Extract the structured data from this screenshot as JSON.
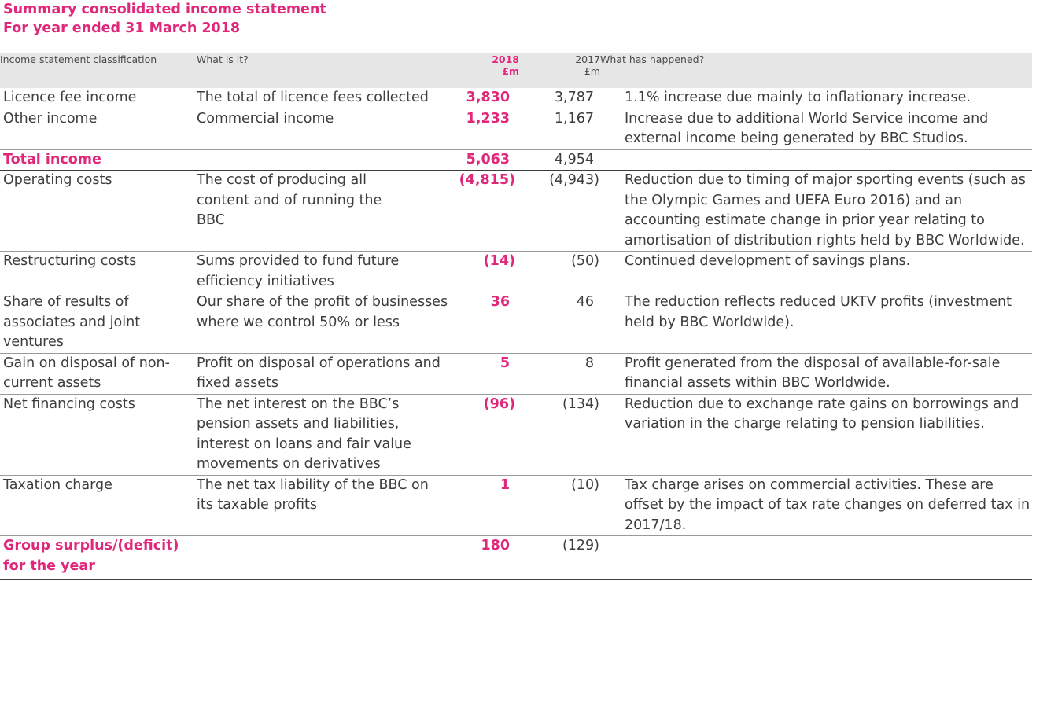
{
  "title": {
    "line1": "Summary consolidated income statement",
    "line2": "For year ended 31 March 2018"
  },
  "colors": {
    "accent": "#e0287b",
    "text": "#3d3d3d",
    "header_bg": "#e6e6e6"
  },
  "header": {
    "classification": "Income statement classification",
    "what_is_it": "What is it?",
    "year_2018": "2018",
    "unit_2018": "£m",
    "year_2017": "2017",
    "unit_2017": "£m",
    "what_happened": "What has happened?"
  },
  "rows": [
    {
      "classification": "Licence fee income",
      "what_is_it": "The total of licence fees collected",
      "v2018": "3,830",
      "v2017": "3,787",
      "what_happened": "1.1% increase due mainly to inflationary increase."
    },
    {
      "classification": "Other income",
      "what_is_it": "Commercial income",
      "v2018": "1,233",
      "v2017": "1,167",
      "what_happened": "Increase due to additional World Service income and external income being generated by BBC Studios."
    },
    {
      "classification": "Total income",
      "what_is_it": "",
      "v2018": "5,063",
      "v2017": "4,954",
      "what_happened": ""
    },
    {
      "classification": "Operating costs",
      "what_is_it": "The cost of producing all content and of running the BBC",
      "v2018": "(4,815)",
      "v2017": "(4,943)",
      "what_happened": "Reduction due to timing of major sporting events (such as the Olympic Games and UEFA Euro 2016) and an accounting estimate change in prior year relating to amortisation of distribution rights held by BBC Worldwide."
    },
    {
      "classification": "Restructuring costs",
      "what_is_it": "Sums provided to fund future efficiency initiatives",
      "v2018": "(14)",
      "v2017": "(50)",
      "what_happened": "Continued development of savings plans."
    },
    {
      "classification": "Share of results of associates and joint ventures",
      "what_is_it": "Our share of the profit of businesses where we control 50% or less",
      "v2018": "36",
      "v2017": "46",
      "what_happened": "The reduction reflects reduced UKTV profits (investment held by BBC Worldwide)."
    },
    {
      "classification": "Gain on disposal of non-current assets",
      "what_is_it": "Profit on disposal of operations and fixed assets",
      "v2018": "5",
      "v2017": "8",
      "what_happened": "Profit generated from the disposal of available-for-sale financial assets within BBC Worldwide."
    },
    {
      "classification": "Net financing costs",
      "what_is_it": "The net interest on the BBC’s pension assets and liabilities, interest on loans and fair value movements on derivatives",
      "v2018": "(96)",
      "v2017": "(134)",
      "what_happened": "Reduction due to exchange rate gains on borrowings and variation in the charge relating to pension liabilities."
    },
    {
      "classification": "Taxation charge",
      "what_is_it": "The net tax liability of the BBC on its taxable profits",
      "v2018": "1",
      "v2017": "(10)",
      "what_happened": "Tax charge arises on commercial activities. These are offset by the impact of tax rate changes on deferred tax in 2017/18."
    },
    {
      "classification": "Group surplus/(deficit) for the year",
      "what_is_it": "",
      "v2018": "180",
      "v2017": "(129)",
      "what_happened": ""
    }
  ]
}
